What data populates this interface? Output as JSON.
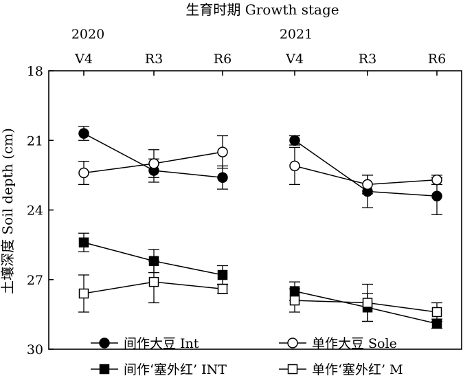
{
  "chart_data": {
    "type": "line",
    "x_title": "生育时期 Growth stage",
    "y_title": "土壤深度 Soil depth (cm)",
    "y_axis": {
      "reversed": true,
      "ylim": [
        18,
        30
      ],
      "ticks": [
        18,
        21,
        24,
        27,
        30
      ]
    },
    "years": [
      "2020",
      "2021"
    ],
    "categories": [
      "V4",
      "R3",
      "R6",
      "V4",
      "R3",
      "R6"
    ],
    "grid": false,
    "legend_position": "bottom",
    "series": [
      {
        "name": "间作大豆 Int",
        "marker": "circle-filled",
        "color": "#000000",
        "segments": [
          {
            "year": "2020",
            "values": [
              20.7,
              22.3,
              22.6
            ],
            "errors": [
              0.3,
              0.5,
              0.5
            ]
          },
          {
            "year": "2021",
            "values": [
              21.0,
              23.2,
              23.4
            ],
            "errors": [
              0.2,
              0.7,
              0.8
            ]
          }
        ]
      },
      {
        "name": "单作大豆 Sole",
        "marker": "circle-open",
        "color": "#000000",
        "segments": [
          {
            "year": "2020",
            "values": [
              22.4,
              22.0,
              21.5
            ],
            "errors": [
              0.5,
              0.6,
              0.7
            ]
          },
          {
            "year": "2021",
            "values": [
              22.1,
              22.9,
              22.7
            ],
            "errors": [
              0.8,
              0.4,
              0.2
            ]
          }
        ]
      },
      {
        "name": "间作‘塞外红’ INT",
        "marker": "square-filled",
        "color": "#000000",
        "segments": [
          {
            "year": "2020",
            "values": [
              25.4,
              26.2,
              26.8
            ],
            "errors": [
              0.4,
              0.5,
              0.4
            ]
          },
          {
            "year": "2021",
            "values": [
              27.5,
              28.2,
              28.9
            ],
            "errors": [
              0.4,
              0.6,
              0.2
            ]
          }
        ]
      },
      {
        "name": "单作‘塞外红’ M",
        "marker": "square-open",
        "color": "#000000",
        "segments": [
          {
            "year": "2020",
            "values": [
              27.6,
              27.1,
              27.4
            ],
            "errors": [
              0.8,
              0.9,
              0.2
            ]
          },
          {
            "year": "2021",
            "values": [
              27.9,
              28.0,
              28.4
            ],
            "errors": [
              0.5,
              0.8,
              0.4
            ]
          }
        ]
      }
    ]
  }
}
